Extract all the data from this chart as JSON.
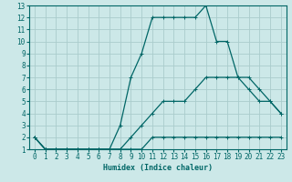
{
  "background_color": "#cce8e8",
  "grid_color": "#aacccc",
  "line_color": "#006666",
  "xlabel": "Humidex (Indice chaleur)",
  "xlim": [
    -0.5,
    23.5
  ],
  "ylim": [
    1,
    13
  ],
  "xticks": [
    0,
    1,
    2,
    3,
    4,
    5,
    6,
    7,
    8,
    9,
    10,
    11,
    12,
    13,
    14,
    15,
    16,
    17,
    18,
    19,
    20,
    21,
    22,
    23
  ],
  "yticks": [
    1,
    2,
    3,
    4,
    5,
    6,
    7,
    8,
    9,
    10,
    11,
    12,
    13
  ],
  "line1_x": [
    0,
    1,
    2,
    3,
    4,
    5,
    6,
    7,
    8,
    9,
    10,
    11,
    12,
    13,
    14,
    15,
    16,
    17,
    18,
    19,
    20,
    21,
    22,
    23
  ],
  "line1_y": [
    2,
    1,
    1,
    1,
    1,
    1,
    1,
    1,
    1,
    1,
    1,
    2,
    2,
    2,
    2,
    2,
    2,
    2,
    2,
    2,
    2,
    2,
    2,
    2
  ],
  "line2_x": [
    0,
    1,
    2,
    3,
    4,
    5,
    6,
    7,
    8,
    9,
    10,
    11,
    12,
    13,
    14,
    15,
    16,
    17,
    18,
    19,
    20,
    21,
    22,
    23
  ],
  "line2_y": [
    2,
    1,
    1,
    1,
    1,
    1,
    1,
    1,
    1,
    2,
    3,
    4,
    5,
    5,
    5,
    6,
    7,
    7,
    7,
    7,
    7,
    6,
    5,
    4
  ],
  "line3_x": [
    0,
    1,
    2,
    3,
    4,
    5,
    6,
    7,
    8,
    9,
    10,
    11,
    12,
    13,
    14,
    15,
    16,
    17,
    18,
    19,
    20,
    21,
    22,
    23
  ],
  "line3_y": [
    2,
    1,
    1,
    1,
    1,
    1,
    1,
    1,
    3,
    7,
    9,
    12,
    12,
    12,
    12,
    12,
    13,
    10,
    10,
    7,
    6,
    5,
    5,
    4
  ],
  "marker": "+"
}
